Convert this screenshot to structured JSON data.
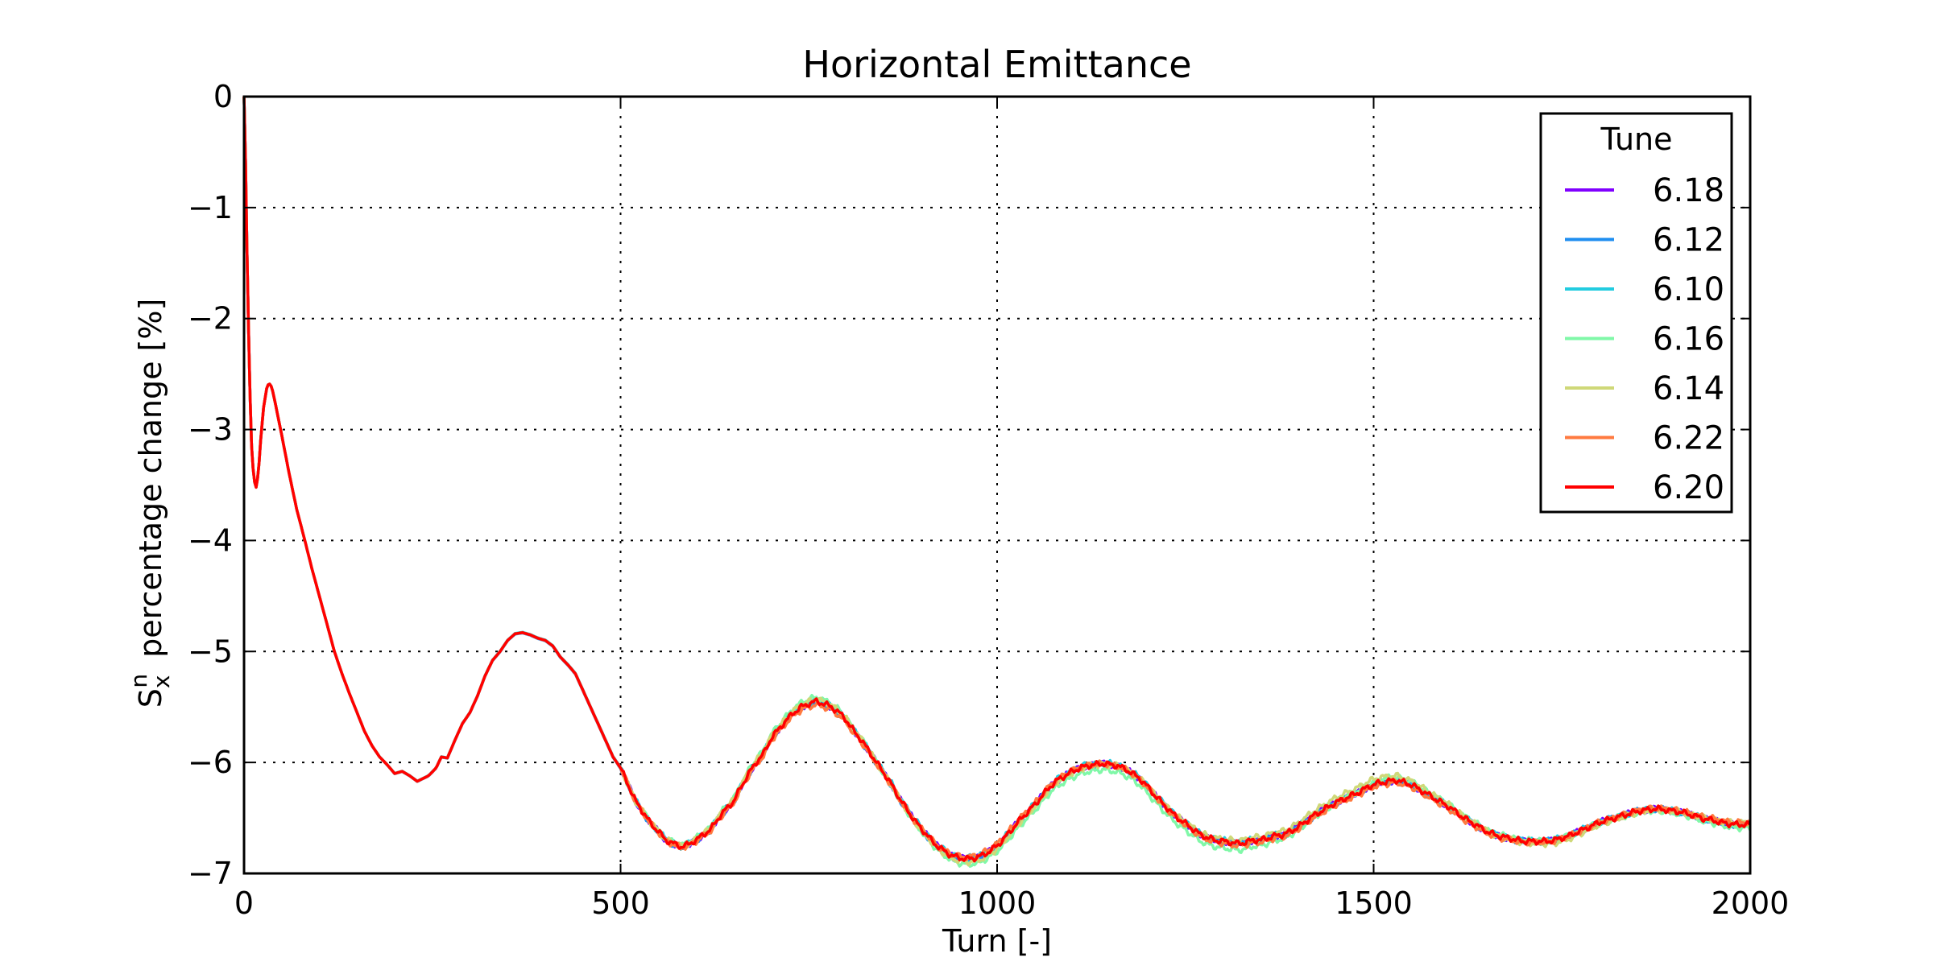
{
  "chart_data": {
    "type": "line",
    "title": "Horizontal Emittance",
    "xlabel": "Turn [-]",
    "ylabel_main": "S",
    "ylabel_sup": "n",
    "ylabel_sub": "x",
    "ylabel_rest": "percentage change [%]",
    "xlim": [
      0,
      2000
    ],
    "ylim": [
      -7,
      0
    ],
    "xticks": [
      0,
      500,
      1000,
      1500,
      2000
    ],
    "xtick_labels": [
      "0",
      "500",
      "1000",
      "1500",
      "2000"
    ],
    "yticks": [
      0,
      -1,
      -2,
      -3,
      -4,
      -5,
      -6,
      -7
    ],
    "ytick_labels": [
      "0",
      "−1",
      "−2",
      "−3",
      "−4",
      "−5",
      "−6",
      "−7"
    ],
    "grid": true,
    "legend": {
      "title": "Tune",
      "placement": "top-right"
    },
    "series": [
      {
        "name": "6.18",
        "color": "#8000ff",
        "offsets": [
          [
            0,
            0
          ],
          [
            1000,
            0
          ],
          [
            2000,
            0
          ]
        ]
      },
      {
        "name": "6.12",
        "color": "#1f8ef0",
        "offsets": [
          [
            0,
            0
          ],
          [
            1000,
            -0.01
          ],
          [
            2000,
            0
          ]
        ]
      },
      {
        "name": "6.10",
        "color": "#22cce0",
        "offsets": [
          [
            0,
            0
          ],
          [
            1000,
            0.01
          ],
          [
            2000,
            0
          ]
        ]
      },
      {
        "name": "6.16",
        "color": "#80f8a8",
        "offsets": [
          [
            0,
            0
          ],
          [
            500,
            0
          ],
          [
            750,
            0.04
          ],
          [
            960,
            -0.05
          ],
          [
            1330,
            -0.06
          ],
          [
            1520,
            0.03
          ],
          [
            2000,
            -0.03
          ]
        ]
      },
      {
        "name": "6.14",
        "color": "#cfd878",
        "offsets": [
          [
            0,
            0
          ],
          [
            500,
            0
          ],
          [
            760,
            0.02
          ],
          [
            970,
            -0.03
          ],
          [
            1500,
            0.05
          ],
          [
            1750,
            -0.03
          ],
          [
            2000,
            0.02
          ]
        ]
      },
      {
        "name": "6.22",
        "color": "#ff7a40",
        "offsets": [
          [
            0,
            0
          ],
          [
            500,
            0
          ],
          [
            770,
            -0.03
          ],
          [
            980,
            0.02
          ],
          [
            1320,
            -0.02
          ],
          [
            1600,
            -0.02
          ],
          [
            2000,
            0.02
          ]
        ]
      },
      {
        "name": "6.20",
        "color": "#ff0000",
        "offsets": [
          [
            0,
            0
          ],
          [
            1000,
            0
          ],
          [
            2000,
            0
          ]
        ]
      }
    ],
    "base_curve": [
      [
        0,
        0
      ],
      [
        2,
        -0.6
      ],
      [
        4,
        -1.4
      ],
      [
        6,
        -2.1
      ],
      [
        8,
        -2.7
      ],
      [
        10,
        -3.15
      ],
      [
        13,
        -3.45
      ],
      [
        16,
        -3.52
      ],
      [
        19,
        -3.4
      ],
      [
        22,
        -3.1
      ],
      [
        26,
        -2.8
      ],
      [
        30,
        -2.63
      ],
      [
        33,
        -2.58
      ],
      [
        37,
        -2.62
      ],
      [
        42,
        -2.78
      ],
      [
        50,
        -3.05
      ],
      [
        60,
        -3.4
      ],
      [
        70,
        -3.72
      ],
      [
        80,
        -3.98
      ],
      [
        90,
        -4.25
      ],
      [
        100,
        -4.5
      ],
      [
        110,
        -4.75
      ],
      [
        120,
        -5.0
      ],
      [
        130,
        -5.2
      ],
      [
        140,
        -5.38
      ],
      [
        150,
        -5.55
      ],
      [
        160,
        -5.72
      ],
      [
        170,
        -5.85
      ],
      [
        180,
        -5.95
      ],
      [
        190,
        -6.02
      ],
      [
        200,
        -6.1
      ],
      [
        210,
        -6.08
      ],
      [
        220,
        -6.12
      ],
      [
        230,
        -6.17
      ],
      [
        245,
        -6.12
      ],
      [
        255,
        -6.05
      ],
      [
        262,
        -5.95
      ],
      [
        270,
        -5.96
      ],
      [
        280,
        -5.8
      ],
      [
        290,
        -5.65
      ],
      [
        300,
        -5.55
      ],
      [
        310,
        -5.4
      ],
      [
        320,
        -5.22
      ],
      [
        330,
        -5.08
      ],
      [
        340,
        -5.0
      ],
      [
        350,
        -4.9
      ],
      [
        360,
        -4.84
      ],
      [
        370,
        -4.83
      ],
      [
        380,
        -4.85
      ],
      [
        390,
        -4.88
      ],
      [
        400,
        -4.9
      ],
      [
        410,
        -4.95
      ],
      [
        420,
        -5.05
      ],
      [
        430,
        -5.12
      ],
      [
        440,
        -5.2
      ],
      [
        450,
        -5.35
      ],
      [
        460,
        -5.5
      ],
      [
        470,
        -5.65
      ],
      [
        480,
        -5.8
      ],
      [
        490,
        -5.95
      ],
      [
        500,
        -6.05
      ],
      [
        510,
        -6.2
      ],
      [
        520,
        -6.35
      ],
      [
        530,
        -6.45
      ],
      [
        540,
        -6.55
      ],
      [
        550,
        -6.62
      ],
      [
        560,
        -6.7
      ],
      [
        570,
        -6.73
      ],
      [
        580,
        -6.76
      ],
      [
        590,
        -6.74
      ],
      [
        600,
        -6.7
      ],
      [
        610,
        -6.65
      ],
      [
        620,
        -6.6
      ],
      [
        630,
        -6.5
      ],
      [
        640,
        -6.42
      ],
      [
        650,
        -6.35
      ],
      [
        660,
        -6.22
      ],
      [
        670,
        -6.1
      ],
      [
        680,
        -6.0
      ],
      [
        690,
        -5.92
      ],
      [
        700,
        -5.78
      ],
      [
        710,
        -5.7
      ],
      [
        720,
        -5.62
      ],
      [
        730,
        -5.55
      ],
      [
        740,
        -5.5
      ],
      [
        750,
        -5.47
      ],
      [
        760,
        -5.45
      ],
      [
        770,
        -5.47
      ],
      [
        780,
        -5.5
      ],
      [
        790,
        -5.55
      ],
      [
        800,
        -5.62
      ],
      [
        810,
        -5.72
      ],
      [
        820,
        -5.8
      ],
      [
        830,
        -5.9
      ],
      [
        840,
        -6.0
      ],
      [
        850,
        -6.1
      ],
      [
        860,
        -6.2
      ],
      [
        870,
        -6.32
      ],
      [
        880,
        -6.42
      ],
      [
        890,
        -6.52
      ],
      [
        900,
        -6.6
      ],
      [
        910,
        -6.68
      ],
      [
        920,
        -6.75
      ],
      [
        930,
        -6.8
      ],
      [
        940,
        -6.84
      ],
      [
        950,
        -6.86
      ],
      [
        960,
        -6.87
      ],
      [
        970,
        -6.86
      ],
      [
        980,
        -6.84
      ],
      [
        990,
        -6.8
      ],
      [
        1000,
        -6.75
      ],
      [
        1010,
        -6.68
      ],
      [
        1020,
        -6.6
      ],
      [
        1030,
        -6.52
      ],
      [
        1040,
        -6.45
      ],
      [
        1050,
        -6.38
      ],
      [
        1060,
        -6.3
      ],
      [
        1070,
        -6.22
      ],
      [
        1080,
        -6.16
      ],
      [
        1090,
        -6.12
      ],
      [
        1100,
        -6.08
      ],
      [
        1110,
        -6.05
      ],
      [
        1120,
        -6.03
      ],
      [
        1130,
        -6.02
      ],
      [
        1140,
        -6.01
      ],
      [
        1150,
        -6.02
      ],
      [
        1160,
        -6.03
      ],
      [
        1170,
        -6.06
      ],
      [
        1180,
        -6.1
      ],
      [
        1190,
        -6.15
      ],
      [
        1200,
        -6.22
      ],
      [
        1210,
        -6.3
      ],
      [
        1220,
        -6.37
      ],
      [
        1230,
        -6.44
      ],
      [
        1240,
        -6.5
      ],
      [
        1250,
        -6.55
      ],
      [
        1260,
        -6.6
      ],
      [
        1270,
        -6.65
      ],
      [
        1280,
        -6.68
      ],
      [
        1290,
        -6.7
      ],
      [
        1300,
        -6.71
      ],
      [
        1310,
        -6.72
      ],
      [
        1320,
        -6.73
      ],
      [
        1330,
        -6.72
      ],
      [
        1340,
        -6.7
      ],
      [
        1350,
        -6.7
      ],
      [
        1360,
        -6.68
      ],
      [
        1370,
        -6.66
      ],
      [
        1380,
        -6.65
      ],
      [
        1390,
        -6.62
      ],
      [
        1400,
        -6.58
      ],
      [
        1410,
        -6.53
      ],
      [
        1420,
        -6.48
      ],
      [
        1430,
        -6.44
      ],
      [
        1440,
        -6.4
      ],
      [
        1450,
        -6.36
      ],
      [
        1460,
        -6.33
      ],
      [
        1470,
        -6.3
      ],
      [
        1480,
        -6.27
      ],
      [
        1490,
        -6.23
      ],
      [
        1500,
        -6.2
      ],
      [
        1510,
        -6.18
      ],
      [
        1520,
        -6.17
      ],
      [
        1530,
        -6.16
      ],
      [
        1540,
        -6.18
      ],
      [
        1550,
        -6.2
      ],
      [
        1560,
        -6.24
      ],
      [
        1570,
        -6.28
      ],
      [
        1580,
        -6.32
      ],
      [
        1590,
        -6.36
      ],
      [
        1600,
        -6.4
      ],
      [
        1610,
        -6.45
      ],
      [
        1620,
        -6.5
      ],
      [
        1630,
        -6.54
      ],
      [
        1640,
        -6.58
      ],
      [
        1650,
        -6.62
      ],
      [
        1660,
        -6.65
      ],
      [
        1670,
        -6.67
      ],
      [
        1680,
        -6.68
      ],
      [
        1690,
        -6.7
      ],
      [
        1700,
        -6.71
      ],
      [
        1710,
        -6.71
      ],
      [
        1720,
        -6.71
      ],
      [
        1730,
        -6.71
      ],
      [
        1740,
        -6.7
      ],
      [
        1750,
        -6.68
      ],
      [
        1760,
        -6.66
      ],
      [
        1770,
        -6.63
      ],
      [
        1780,
        -6.6
      ],
      [
        1790,
        -6.57
      ],
      [
        1800,
        -6.54
      ],
      [
        1810,
        -6.52
      ],
      [
        1820,
        -6.5
      ],
      [
        1830,
        -6.48
      ],
      [
        1840,
        -6.46
      ],
      [
        1850,
        -6.44
      ],
      [
        1860,
        -6.43
      ],
      [
        1870,
        -6.42
      ],
      [
        1880,
        -6.42
      ],
      [
        1890,
        -6.43
      ],
      [
        1900,
        -6.44
      ],
      [
        1910,
        -6.45
      ],
      [
        1920,
        -6.47
      ],
      [
        1930,
        -6.49
      ],
      [
        1940,
        -6.51
      ],
      [
        1950,
        -6.52
      ],
      [
        1960,
        -6.54
      ],
      [
        1970,
        -6.55
      ],
      [
        1980,
        -6.56
      ],
      [
        1990,
        -6.56
      ],
      [
        2000,
        -6.56
      ]
    ]
  }
}
